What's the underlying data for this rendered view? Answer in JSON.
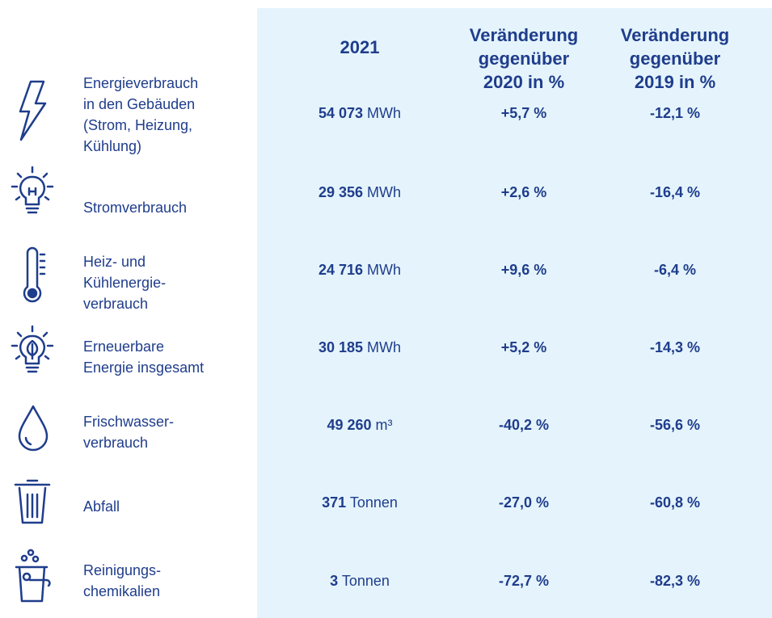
{
  "table": {
    "header": {
      "columns": [
        [
          "2021"
        ],
        [
          "Veränderung",
          "gegenüber",
          "2020 in %"
        ],
        [
          "Veränderung",
          "gegenüber",
          "2019 in %"
        ]
      ]
    },
    "rows": [
      {
        "label": [
          "Energieverbrauch",
          "in den Gebäuden",
          "(Strom, Heizung,",
          "Kühlung)"
        ],
        "value": "54 073",
        "unit": "MWh",
        "change2020": "+5,7 %",
        "change2019": "-12,1 %"
      },
      {
        "label": [
          "Stromverbrauch"
        ],
        "value": "29 356",
        "unit": "MWh",
        "change2020": "+2,6 %",
        "change2019": "-16,4 %"
      },
      {
        "label": [
          "Heiz- und",
          "Kühlenergie-",
          "verbrauch"
        ],
        "value": "24 716",
        "unit": "MWh",
        "change2020": "+9,6 %",
        "change2019": "-6,4 %"
      },
      {
        "label": [
          "Erneuerbare",
          "Energie insgesamt"
        ],
        "value": "30 185",
        "unit": "MWh",
        "change2020": "+5,2 %",
        "change2019": "-14,3 %"
      },
      {
        "label": [
          "Frischwasser-",
          "verbrauch"
        ],
        "value": "49 260",
        "unit": "m³",
        "change2020": "-40,2 %",
        "change2019": "-56,6 %"
      },
      {
        "label": [
          "Abfall"
        ],
        "value": "371",
        "unit": "Tonnen",
        "change2020": "-27,0 %",
        "change2019": "-60,8 %"
      },
      {
        "label": [
          "Reinigungs-",
          "chemikalien"
        ],
        "value": "3",
        "unit": "Tonnen",
        "change2020": "-72,7 %",
        "change2019": "-82,3 %"
      }
    ]
  }
}
